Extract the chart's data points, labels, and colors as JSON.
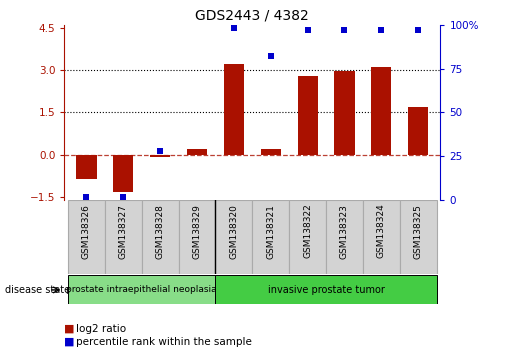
{
  "title": "GDS2443 / 4382",
  "samples": [
    "GSM138326",
    "GSM138327",
    "GSM138328",
    "GSM138329",
    "GSM138320",
    "GSM138321",
    "GSM138322",
    "GSM138323",
    "GSM138324",
    "GSM138325"
  ],
  "log2_ratio": [
    -0.85,
    -1.3,
    -0.08,
    0.2,
    3.2,
    0.22,
    2.8,
    2.95,
    3.1,
    1.7
  ],
  "percentile": [
    2,
    2,
    28,
    null,
    98,
    82,
    97,
    97,
    97,
    97
  ],
  "ylim_left": [
    -1.6,
    4.6
  ],
  "ylim_right": [
    0,
    100
  ],
  "yticks_left": [
    -1.5,
    0,
    1.5,
    3,
    4.5
  ],
  "yticks_right": [
    0,
    25,
    50,
    75,
    100
  ],
  "hlines_dotted": [
    1.5,
    3.0
  ],
  "hline_dashed": 0,
  "bar_color": "#aa1100",
  "dot_color": "#0000cc",
  "bar_width": 0.55,
  "group1_label": "prostate intraepithelial neoplasia",
  "group2_label": "invasive prostate tumor",
  "group1_indices": [
    0,
    1,
    2,
    3
  ],
  "group2_indices": [
    4,
    5,
    6,
    7,
    8,
    9
  ],
  "group1_color": "#88dd88",
  "group2_color": "#44cc44",
  "sample_box_color": "#d3d3d3",
  "sample_box_edge": "#aaaaaa",
  "disease_state_label": "disease state",
  "legend_bar_label": "log2 ratio",
  "legend_dot_label": "percentile rank within the sample",
  "bg_color": "#ffffff",
  "separator_col": 3.5
}
